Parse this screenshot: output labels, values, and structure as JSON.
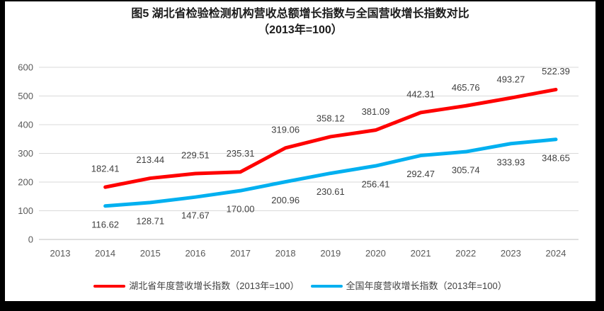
{
  "chart_data": {
    "type": "line",
    "title": "图5 湖北省检验检测机构营收总额增长指数与全国营收增长指数对比",
    "subtitle": "（2013年=100）",
    "categories": [
      "2013",
      "2014",
      "2015",
      "2016",
      "2017",
      "2018",
      "2019",
      "2020",
      "2021",
      "2022",
      "2023",
      "2024"
    ],
    "series": [
      {
        "name": "湖北省年度营收增长指数（2013年=100）",
        "color": "#FF0000",
        "label_position": "above",
        "values": [
          null,
          182.41,
          213.44,
          229.51,
          235.31,
          319.06,
          358.12,
          381.09,
          442.31,
          465.76,
          493.27,
          522.39
        ]
      },
      {
        "name": "全国年度营收增长指数（2013年=100）",
        "color": "#00B0F0",
        "label_position": "below",
        "values": [
          null,
          116.62,
          128.71,
          147.67,
          170.0,
          200.96,
          230.61,
          256.41,
          292.47,
          305.74,
          333.93,
          348.65
        ]
      }
    ],
    "xlabel": "",
    "ylabel": "",
    "ylim": [
      0,
      600
    ],
    "yticks": [
      0,
      100,
      200,
      300,
      400,
      500,
      600
    ],
    "grid": true,
    "legend_position": "bottom",
    "colors": {
      "gridline": "#D9D9D9",
      "axis_line": "#BFBFBF",
      "tick_label": "#595959",
      "data_label": "#404040",
      "title": "#1a1a1a",
      "frame_border": "#000000",
      "background": "#FFFFFF"
    }
  }
}
